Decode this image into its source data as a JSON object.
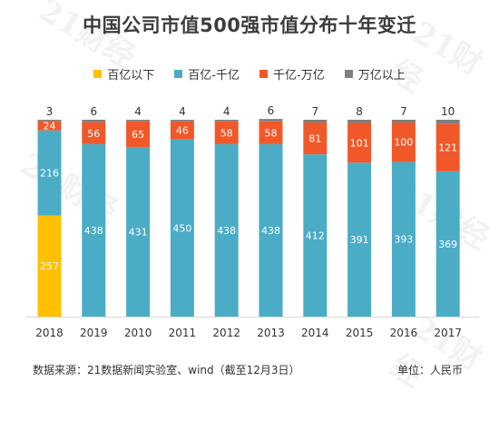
{
  "title": "中国公司市值500强市值分布十年变迁",
  "legend": [
    {
      "label": "百亿以下",
      "color": "#FFC000"
    },
    {
      "label": "百亿-千亿",
      "color": "#4BACC6"
    },
    {
      "label": "千亿-万亿",
      "color": "#F0582A"
    },
    {
      "label": "万亿以上",
      "color": "#7F7F7F"
    }
  ],
  "source": "数据来源：21数据新闻实验室、wind（截至12月3日）",
  "unit": "单位：人民币",
  "watermark": "21财经",
  "chart_data": {
    "type": "bar",
    "stacked": true,
    "title": "中国公司市值500强市值分布十年变迁",
    "categories": [
      "2018",
      "2019",
      "2010",
      "2011",
      "2012",
      "2013",
      "2014",
      "2015",
      "2016",
      "2017"
    ],
    "series": [
      {
        "name": "百亿以下",
        "color": "#FFC000",
        "values": [
          257,
          0,
          0,
          0,
          0,
          0,
          0,
          0,
          0,
          0
        ]
      },
      {
        "name": "百亿-千亿",
        "color": "#4BACC6",
        "values": [
          216,
          438,
          431,
          450,
          438,
          438,
          412,
          391,
          393,
          369
        ]
      },
      {
        "name": "千亿-万亿",
        "color": "#F0582A",
        "values": [
          24,
          56,
          65,
          46,
          58,
          58,
          81,
          101,
          100,
          121
        ]
      },
      {
        "name": "万亿以上",
        "color": "#7F7F7F",
        "values": [
          3,
          6,
          4,
          4,
          4,
          6,
          7,
          8,
          7,
          10
        ]
      }
    ],
    "ylim": [
      0,
      500
    ],
    "legend_position": "top"
  }
}
